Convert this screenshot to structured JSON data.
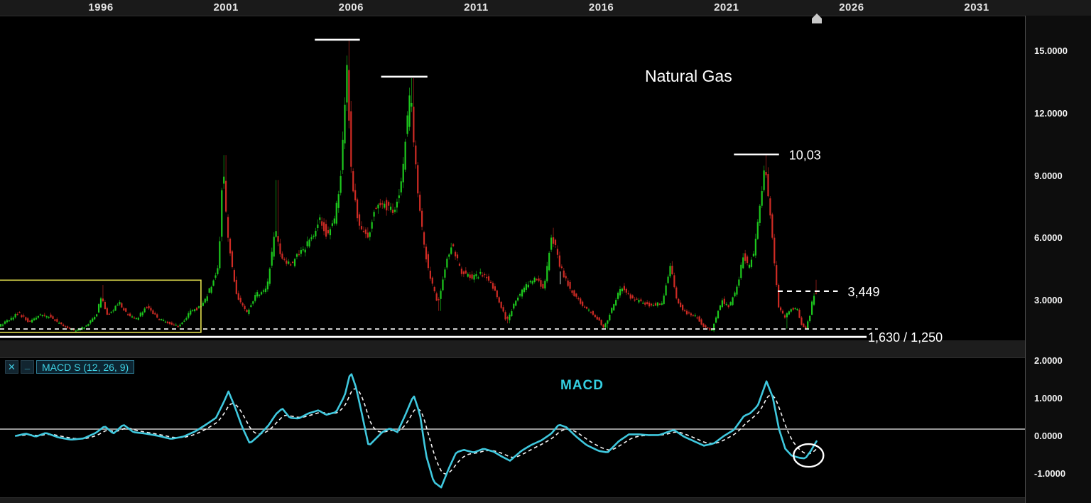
{
  "title": "Natural Gas",
  "macd_label": "MACD",
  "macd_header": {
    "close_glyph": "✕",
    "minimize_glyph": "_",
    "label": "MACD S (12, 26, 9)"
  },
  "colors": {
    "up": "#1dc81d",
    "up_wick": "#0f7d12",
    "down": "#cf2b24",
    "down_wick": "#7e1a16",
    "macd_line": "#3fc8de",
    "signal_line": "#f2f2f2",
    "accent_cyan": "#35d0e2",
    "box_yellow": "#e3df4e",
    "annotation_white": "#ffffff",
    "zero_line": "#c9c9c9"
  },
  "chart_data": {
    "type": "candlestick",
    "title": "Natural Gas",
    "indicator": "MACD S (12, 26, 9)",
    "x_axis": {
      "ticks": [
        {
          "label": "1996",
          "year": 1996
        },
        {
          "label": "2001",
          "year": 2001
        },
        {
          "label": "2006",
          "year": 2006
        },
        {
          "label": "2011",
          "year": 2011
        },
        {
          "label": "2016",
          "year": 2016
        },
        {
          "label": "2021",
          "year": 2021
        },
        {
          "label": "2026",
          "year": 2026
        },
        {
          "label": "2031",
          "year": 2031
        }
      ]
    },
    "price_axis": {
      "ticks": [
        {
          "label": "15.0000",
          "value": 15
        },
        {
          "label": "12.0000",
          "value": 12
        },
        {
          "label": "9.0000",
          "value": 9
        },
        {
          "label": "6.0000",
          "value": 6
        },
        {
          "label": "3.0000",
          "value": 3
        }
      ],
      "range": [
        0.4,
        16.8
      ]
    },
    "macd_axis": {
      "ticks": [
        {
          "label": "2.0000",
          "value": 2
        },
        {
          "label": "1.0000",
          "value": 1
        },
        {
          "label": "0.0000",
          "value": 0
        },
        {
          "label": "-1.0000",
          "value": -1
        }
      ]
    },
    "price_path": [
      [
        1992.0,
        1.75
      ],
      [
        1992.4,
        2.05
      ],
      [
        1992.8,
        2.4
      ],
      [
        1993.2,
        1.95
      ],
      [
        1993.6,
        2.3
      ],
      [
        1994.0,
        2.25
      ],
      [
        1994.5,
        1.85
      ],
      [
        1995.0,
        1.55
      ],
      [
        1995.5,
        1.75
      ],
      [
        1995.9,
        2.3
      ],
      [
        1996.1,
        3.2
      ],
      [
        1996.35,
        2.25
      ],
      [
        1996.8,
        2.9
      ],
      [
        1997.1,
        2.4
      ],
      [
        1997.5,
        2.1
      ],
      [
        1997.9,
        2.7
      ],
      [
        1998.3,
        2.2
      ],
      [
        1998.8,
        1.9
      ],
      [
        1999.2,
        1.75
      ],
      [
        1999.7,
        2.5
      ],
      [
        2000.1,
        2.7
      ],
      [
        2000.5,
        3.7
      ],
      [
        2000.8,
        4.8
      ],
      [
        2000.95,
        9.6
      ],
      [
        2001.15,
        6.0
      ],
      [
        2001.5,
        3.3
      ],
      [
        2001.9,
        2.4
      ],
      [
        2002.3,
        3.3
      ],
      [
        2002.7,
        3.5
      ],
      [
        2003.05,
        6.4
      ],
      [
        2003.3,
        5.1
      ],
      [
        2003.7,
        4.7
      ],
      [
        2004.1,
        5.4
      ],
      [
        2004.5,
        5.9
      ],
      [
        2004.8,
        7.0
      ],
      [
        2005.1,
        6.2
      ],
      [
        2005.45,
        7.0
      ],
      [
        2005.7,
        9.5
      ],
      [
        2005.92,
        14.2
      ],
      [
        2006.1,
        8.8
      ],
      [
        2006.4,
        6.7
      ],
      [
        2006.75,
        5.9
      ],
      [
        2007.0,
        7.3
      ],
      [
        2007.4,
        7.7
      ],
      [
        2007.8,
        7.1
      ],
      [
        2008.1,
        8.8
      ],
      [
        2008.45,
        13.1
      ],
      [
        2008.65,
        9.5
      ],
      [
        2008.9,
        6.5
      ],
      [
        2009.2,
        4.2
      ],
      [
        2009.55,
        2.9
      ],
      [
        2009.9,
        4.9
      ],
      [
        2010.1,
        5.7
      ],
      [
        2010.5,
        4.4
      ],
      [
        2010.9,
        4.1
      ],
      [
        2011.3,
        4.3
      ],
      [
        2011.7,
        3.8
      ],
      [
        2012.0,
        2.9
      ],
      [
        2012.3,
        2.0
      ],
      [
        2012.7,
        3.1
      ],
      [
        2013.1,
        3.7
      ],
      [
        2013.4,
        4.1
      ],
      [
        2013.8,
        3.6
      ],
      [
        2014.1,
        6.2
      ],
      [
        2014.45,
        4.6
      ],
      [
        2014.9,
        3.4
      ],
      [
        2015.3,
        2.8
      ],
      [
        2015.8,
        2.3
      ],
      [
        2016.2,
        1.7
      ],
      [
        2016.6,
        2.9
      ],
      [
        2016.9,
        3.7
      ],
      [
        2017.3,
        3.1
      ],
      [
        2017.7,
        2.9
      ],
      [
        2018.1,
        2.75
      ],
      [
        2018.5,
        2.9
      ],
      [
        2018.85,
        4.7
      ],
      [
        2019.1,
        2.9
      ],
      [
        2019.5,
        2.4
      ],
      [
        2019.9,
        2.2
      ],
      [
        2020.2,
        1.7
      ],
      [
        2020.5,
        1.6
      ],
      [
        2020.9,
        3.0
      ],
      [
        2021.2,
        2.7
      ],
      [
        2021.55,
        3.8
      ],
      [
        2021.75,
        5.2
      ],
      [
        2021.95,
        4.6
      ],
      [
        2022.2,
        5.3
      ],
      [
        2022.4,
        7.3
      ],
      [
        2022.6,
        9.6
      ],
      [
        2022.75,
        8.1
      ],
      [
        2022.95,
        5.6
      ],
      [
        2023.15,
        2.7
      ],
      [
        2023.4,
        2.2
      ],
      [
        2023.65,
        2.6
      ],
      [
        2023.9,
        2.6
      ],
      [
        2024.1,
        1.8
      ],
      [
        2024.25,
        1.65
      ],
      [
        2024.4,
        2.2
      ],
      [
        2024.5,
        2.9
      ],
      [
        2024.62,
        3.449
      ]
    ],
    "key_highs": [
      [
        1996.1,
        3.75
      ],
      [
        2000.95,
        10.0
      ],
      [
        2003.05,
        8.8
      ],
      [
        2005.92,
        15.6
      ],
      [
        2008.45,
        13.7
      ],
      [
        2014.1,
        6.5
      ],
      [
        2018.85,
        4.9
      ],
      [
        2022.6,
        10.03
      ],
      [
        2024.62,
        4.0
      ]
    ],
    "key_lows": [
      [
        1995.0,
        1.45
      ],
      [
        2009.55,
        2.5
      ],
      [
        2012.3,
        1.9
      ],
      [
        2016.2,
        1.61
      ],
      [
        2020.5,
        1.48
      ],
      [
        2023.4,
        1.64
      ],
      [
        2024.25,
        1.58
      ]
    ],
    "macd_path": [
      [
        1992.6,
        -0.18
      ],
      [
        1993.0,
        -0.12
      ],
      [
        1993.4,
        -0.2
      ],
      [
        1993.8,
        -0.1
      ],
      [
        1994.3,
        -0.22
      ],
      [
        1994.8,
        -0.28
      ],
      [
        1995.3,
        -0.25
      ],
      [
        1995.8,
        -0.1
      ],
      [
        1996.15,
        0.08
      ],
      [
        1996.5,
        -0.12
      ],
      [
        1996.9,
        0.12
      ],
      [
        1997.3,
        -0.08
      ],
      [
        1997.8,
        -0.12
      ],
      [
        1998.3,
        -0.18
      ],
      [
        1998.8,
        -0.26
      ],
      [
        1999.3,
        -0.2
      ],
      [
        1999.8,
        -0.05
      ],
      [
        2000.2,
        0.12
      ],
      [
        2000.6,
        0.3
      ],
      [
        2000.9,
        0.7
      ],
      [
        2001.1,
        1.0
      ],
      [
        2001.35,
        0.6
      ],
      [
        2001.65,
        0.05
      ],
      [
        2001.95,
        -0.38
      ],
      [
        2002.3,
        -0.18
      ],
      [
        2002.7,
        0.1
      ],
      [
        2003.0,
        0.4
      ],
      [
        2003.25,
        0.55
      ],
      [
        2003.55,
        0.3
      ],
      [
        2003.9,
        0.28
      ],
      [
        2004.3,
        0.42
      ],
      [
        2004.7,
        0.5
      ],
      [
        2005.0,
        0.38
      ],
      [
        2005.4,
        0.45
      ],
      [
        2005.75,
        0.9
      ],
      [
        2005.98,
        1.53
      ],
      [
        2006.2,
        1.1
      ],
      [
        2006.45,
        0.35
      ],
      [
        2006.7,
        -0.45
      ],
      [
        2006.95,
        -0.28
      ],
      [
        2007.25,
        -0.08
      ],
      [
        2007.55,
        0.02
      ],
      [
        2007.85,
        -0.08
      ],
      [
        2008.15,
        0.35
      ],
      [
        2008.5,
        0.9
      ],
      [
        2008.75,
        0.4
      ],
      [
        2009.0,
        -0.7
      ],
      [
        2009.3,
        -1.4
      ],
      [
        2009.6,
        -1.55
      ],
      [
        2009.9,
        -1.05
      ],
      [
        2010.2,
        -0.62
      ],
      [
        2010.5,
        -0.55
      ],
      [
        2010.9,
        -0.62
      ],
      [
        2011.3,
        -0.52
      ],
      [
        2011.7,
        -0.6
      ],
      [
        2012.0,
        -0.72
      ],
      [
        2012.35,
        -0.84
      ],
      [
        2012.8,
        -0.58
      ],
      [
        2013.2,
        -0.42
      ],
      [
        2013.6,
        -0.3
      ],
      [
        2014.0,
        -0.12
      ],
      [
        2014.3,
        0.12
      ],
      [
        2014.6,
        0.05
      ],
      [
        2015.0,
        -0.2
      ],
      [
        2015.4,
        -0.42
      ],
      [
        2015.9,
        -0.58
      ],
      [
        2016.25,
        -0.62
      ],
      [
        2016.7,
        -0.32
      ],
      [
        2017.1,
        -0.14
      ],
      [
        2017.5,
        -0.14
      ],
      [
        2017.9,
        -0.16
      ],
      [
        2018.3,
        -0.16
      ],
      [
        2018.9,
        -0.02
      ],
      [
        2019.3,
        -0.2
      ],
      [
        2019.7,
        -0.32
      ],
      [
        2020.1,
        -0.44
      ],
      [
        2020.5,
        -0.38
      ],
      [
        2020.9,
        -0.18
      ],
      [
        2021.3,
        -0.02
      ],
      [
        2021.7,
        0.35
      ],
      [
        2021.95,
        0.42
      ],
      [
        2022.25,
        0.62
      ],
      [
        2022.6,
        1.27
      ],
      [
        2022.85,
        0.85
      ],
      [
        2023.1,
        0.0
      ],
      [
        2023.35,
        -0.52
      ],
      [
        2023.6,
        -0.7
      ],
      [
        2023.9,
        -0.76
      ],
      [
        2024.15,
        -0.78
      ],
      [
        2024.35,
        -0.6
      ],
      [
        2024.62,
        -0.3
      ]
    ],
    "annotations": {
      "peak_lines": [
        {
          "from": 2004.55,
          "to": 2006.35,
          "level": 15.55
        },
        {
          "from": 2007.2,
          "to": 2009.05,
          "level": 13.77
        }
      ],
      "level_labels": [
        {
          "label": "10,03",
          "from": 2021.3,
          "to": 2023.1,
          "level": 10.03,
          "dashed": false
        },
        {
          "label": "3,449",
          "from": 2023.05,
          "to": 2025.45,
          "level": 3.449,
          "dashed": true
        }
      ],
      "support_lines": [
        {
          "level": 1.63,
          "to": 2027.05,
          "dashed": true,
          "label": ""
        },
        {
          "level": 1.25,
          "to": 2026.6,
          "dashed": false,
          "label": "1,630 / 1,250"
        }
      ],
      "range_box": {
        "from": 1991.8,
        "to": 2000.0,
        "top": 3.98,
        "bottom": 1.47
      },
      "small_tick": {
        "year": 2014.36,
        "from": 3.78,
        "to": 4.4
      },
      "macd_ellipse": {
        "year": 2024.28,
        "value": -0.7
      },
      "time_marker": {
        "year": 2024.6
      },
      "macd_zero_level": 0
    }
  }
}
